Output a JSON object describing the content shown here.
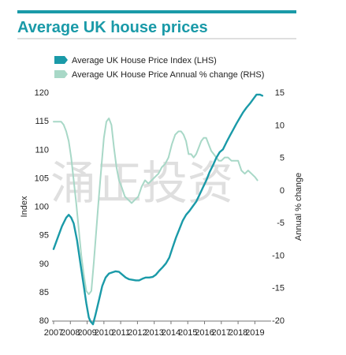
{
  "chart_data": {
    "type": "line",
    "title": "Average UK house prices",
    "ylabel": "Index",
    "y2label": "Annual % change",
    "ylim": [
      80,
      120
    ],
    "y2lim": [
      -20,
      15
    ],
    "xlim": [
      2007,
      2019.5
    ],
    "x_ticks": [
      "2007",
      "2008",
      "2009",
      "2010",
      "2011",
      "2012",
      "2013",
      "2014",
      "2015",
      "2016",
      "2017",
      "2018",
      "2019"
    ],
    "y_ticks": [
      "80",
      "85",
      "90",
      "95",
      "100",
      "105",
      "110",
      "115",
      "120"
    ],
    "y2_ticks": [
      "-20",
      "-15",
      "-10",
      "-5",
      "0",
      "5",
      "10",
      "15"
    ],
    "grid": false,
    "legend_position": "top-left",
    "colors": {
      "primary": "#1a9aa8",
      "secondary": "#a8d8c7",
      "title_bar": "#1a9aa8"
    },
    "series": [
      {
        "name": "Average UK House Price Index (LHS)",
        "axis": "left",
        "x": [
          2007.0,
          2007.25,
          2007.5,
          2007.75,
          2007.9,
          2008.05,
          2008.2,
          2008.4,
          2008.6,
          2008.8,
          2008.95,
          2009.1,
          2009.2,
          2009.35,
          2009.5,
          2009.7,
          2009.9,
          2010.1,
          2010.3,
          2010.5,
          2010.7,
          2010.9,
          2011.1,
          2011.3,
          2011.5,
          2011.7,
          2011.9,
          2012.1,
          2012.3,
          2012.5,
          2012.7,
          2012.9,
          2013.1,
          2013.3,
          2013.5,
          2013.7,
          2013.9,
          2014.1,
          2014.3,
          2014.5,
          2014.7,
          2014.9,
          2015.1,
          2015.3,
          2015.5,
          2015.7,
          2015.9,
          2016.1,
          2016.3,
          2016.5,
          2016.7,
          2016.9,
          2017.1,
          2017.3,
          2017.5,
          2017.7,
          2017.9,
          2018.1,
          2018.3,
          2018.5,
          2018.7,
          2018.9,
          2019.1,
          2019.3,
          2019.45
        ],
        "values": [
          92.5,
          94.5,
          96.5,
          98,
          98.5,
          98,
          97,
          94,
          90,
          86,
          83,
          80.5,
          79.8,
          79.3,
          81,
          83.5,
          86,
          87.5,
          88.2,
          88.4,
          88.6,
          88.5,
          88.0,
          87.5,
          87.2,
          87.1,
          87.0,
          87.0,
          87.3,
          87.5,
          87.5,
          87.6,
          88.0,
          88.7,
          89.3,
          90.0,
          91.0,
          92.8,
          94.5,
          96.0,
          97.5,
          98.5,
          99.2,
          100,
          100.8,
          102,
          103.3,
          104.5,
          106,
          107.2,
          108.5,
          109.5,
          110,
          111.2,
          112.3,
          113.4,
          114.5,
          115.5,
          116.5,
          117.3,
          118.0,
          118.8,
          119.6,
          119.6,
          119.4
        ]
      },
      {
        "name": "Average UK House Price Annual % change (RHS)",
        "axis": "right",
        "x": [
          2007.0,
          2007.25,
          2007.45,
          2007.6,
          2007.75,
          2007.9,
          2008.05,
          2008.2,
          2008.35,
          2008.5,
          2008.65,
          2008.8,
          2008.95,
          2009.1,
          2009.25,
          2009.4,
          2009.55,
          2009.7,
          2009.85,
          2010.0,
          2010.15,
          2010.3,
          2010.45,
          2010.6,
          2010.75,
          2010.9,
          2011.05,
          2011.25,
          2011.45,
          2011.65,
          2011.85,
          2012.05,
          2012.25,
          2012.45,
          2012.65,
          2012.85,
          2013.05,
          2013.25,
          2013.45,
          2013.65,
          2013.85,
          2014.05,
          2014.25,
          2014.45,
          2014.6,
          2014.75,
          2014.9,
          2015.05,
          2015.2,
          2015.35,
          2015.5,
          2015.65,
          2015.8,
          2015.95,
          2016.1,
          2016.25,
          2016.4,
          2016.55,
          2016.7,
          2016.85,
          2017.0,
          2017.2,
          2017.4,
          2017.6,
          2017.8,
          2018.0,
          2018.2,
          2018.4,
          2018.6,
          2018.8,
          2019.0,
          2019.15
        ],
        "values": [
          10.5,
          10.5,
          10.5,
          10.0,
          9.0,
          7.5,
          5.0,
          1.5,
          -2.0,
          -6.0,
          -10.0,
          -13.0,
          -15.5,
          -16.0,
          -15.5,
          -11.0,
          -6.0,
          -1.0,
          3.5,
          8.0,
          10.5,
          11.0,
          10.0,
          6.5,
          3.5,
          1.5,
          0.5,
          -1.0,
          -1.5,
          -2.0,
          -1.5,
          -1.0,
          0.5,
          1.5,
          1.0,
          1.5,
          2.0,
          2.5,
          3.5,
          4.0,
          5.0,
          7.0,
          8.5,
          9.0,
          9.0,
          8.5,
          7.5,
          5.5,
          5.5,
          5.0,
          5.5,
          6.5,
          7.5,
          8.0,
          8.0,
          7.0,
          6.0,
          5.5,
          5.0,
          4.5,
          4.5,
          5.0,
          5.0,
          4.5,
          4.5,
          4.5,
          3.0,
          2.5,
          3.0,
          2.5,
          2.0,
          1.5
        ]
      }
    ]
  },
  "watermark": "涌正投资"
}
